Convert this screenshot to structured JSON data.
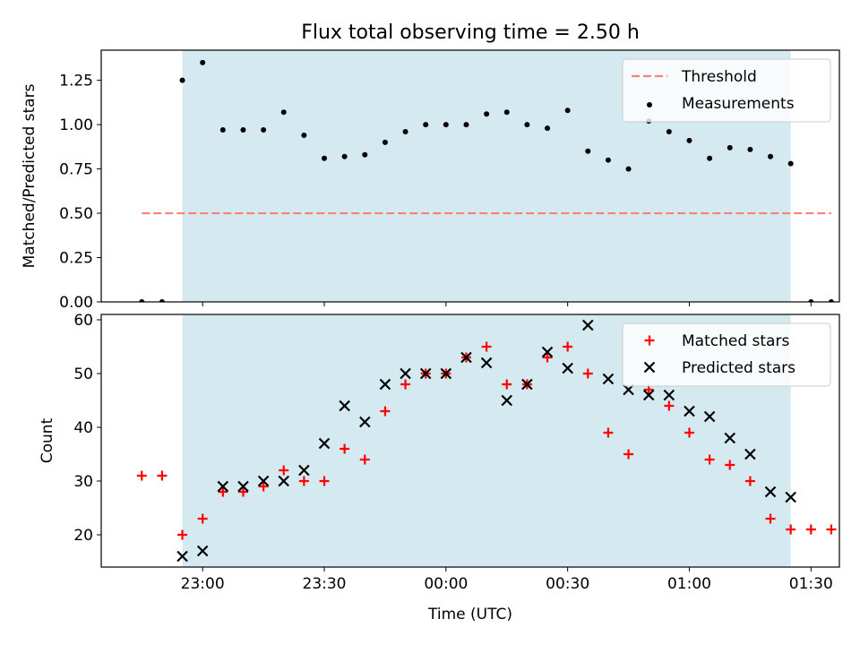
{
  "figure": {
    "title": "Flux total observing time = 2.50 h",
    "xlabel": "Time (UTC)",
    "xtick_labels": [
      "23:00",
      "23:30",
      "00:00",
      "00:30",
      "01:00",
      "01:30"
    ]
  },
  "colors": {
    "window_shade": "#d4eaf0",
    "threshold": "#ff7f7f",
    "measurements": "#000000",
    "matched": "#ff0000",
    "predicted": "#000000"
  },
  "chart_data": [
    {
      "type": "scatter",
      "ylabel": "Matched/Predicted stars",
      "xlim": [
        "22:35",
        "01:37"
      ],
      "ylim": [
        0,
        1.42
      ],
      "yticks": [
        "0.00",
        "0.25",
        "0.50",
        "0.75",
        "1.00",
        "1.25"
      ],
      "observing_window": [
        "22:55",
        "01:25"
      ],
      "legend_position": "upper right",
      "threshold": {
        "name": "Threshold",
        "value": 0.5,
        "x_range": [
          "22:45",
          "01:35"
        ]
      },
      "series": [
        {
          "name": "Measurements",
          "marker": "dot",
          "x": [
            "22:45",
            "22:50",
            "22:55",
            "23:00",
            "23:05",
            "23:10",
            "23:15",
            "23:20",
            "23:25",
            "23:30",
            "23:35",
            "23:40",
            "23:45",
            "23:50",
            "23:55",
            "00:00",
            "00:05",
            "00:10",
            "00:15",
            "00:20",
            "00:25",
            "00:30",
            "00:35",
            "00:40",
            "00:45",
            "00:50",
            "00:55",
            "01:00",
            "01:05",
            "01:10",
            "01:15",
            "01:20",
            "01:25",
            "01:30",
            "01:35"
          ],
          "y": [
            0.0,
            0.0,
            1.25,
            1.35,
            0.97,
            0.97,
            0.97,
            1.07,
            0.94,
            0.81,
            0.82,
            0.83,
            0.9,
            0.96,
            1.0,
            1.0,
            1.0,
            1.06,
            1.07,
            1.0,
            0.98,
            1.08,
            0.85,
            0.8,
            0.75,
            1.02,
            0.96,
            0.91,
            0.81,
            0.87,
            0.86,
            0.82,
            0.78,
            0.0,
            0.0
          ]
        }
      ]
    },
    {
      "type": "scatter",
      "ylabel": "Count",
      "xlim": [
        "22:35",
        "01:37"
      ],
      "ylim": [
        14,
        61
      ],
      "yticks": [
        "20",
        "30",
        "40",
        "50",
        "60"
      ],
      "observing_window": [
        "22:55",
        "01:25"
      ],
      "legend_position": "upper right",
      "series": [
        {
          "name": "Matched stars",
          "marker": "plus",
          "x": [
            "22:45",
            "22:50",
            "22:55",
            "23:00",
            "23:05",
            "23:10",
            "23:15",
            "23:20",
            "23:25",
            "23:30",
            "23:35",
            "23:40",
            "23:45",
            "23:50",
            "23:55",
            "00:00",
            "00:05",
            "00:10",
            "00:15",
            "00:20",
            "00:25",
            "00:30",
            "00:35",
            "00:40",
            "00:45",
            "00:50",
            "00:55",
            "01:00",
            "01:05",
            "01:10",
            "01:15",
            "01:20",
            "01:25",
            "01:30",
            "01:35"
          ],
          "y": [
            31,
            31,
            20,
            23,
            28,
            28,
            29,
            32,
            30,
            30,
            36,
            34,
            43,
            48,
            50,
            50,
            53,
            55,
            48,
            48,
            53,
            55,
            50,
            39,
            35,
            47,
            44,
            39,
            34,
            33,
            30,
            23,
            21,
            21,
            21
          ]
        },
        {
          "name": "Predicted stars",
          "marker": "x",
          "x": [
            "22:55",
            "23:00",
            "23:05",
            "23:10",
            "23:15",
            "23:20",
            "23:25",
            "23:30",
            "23:35",
            "23:40",
            "23:45",
            "23:50",
            "23:55",
            "00:00",
            "00:05",
            "00:10",
            "00:15",
            "00:20",
            "00:25",
            "00:30",
            "00:35",
            "00:40",
            "00:45",
            "00:50",
            "00:55",
            "01:00",
            "01:05",
            "01:10",
            "01:15",
            "01:20",
            "01:25"
          ],
          "y": [
            16,
            17,
            29,
            29,
            30,
            30,
            32,
            37,
            44,
            41,
            48,
            50,
            50,
            50,
            53,
            52,
            45,
            48,
            54,
            51,
            59,
            49,
            47,
            46,
            46,
            43,
            42,
            38,
            35,
            28,
            27
          ]
        }
      ]
    }
  ]
}
